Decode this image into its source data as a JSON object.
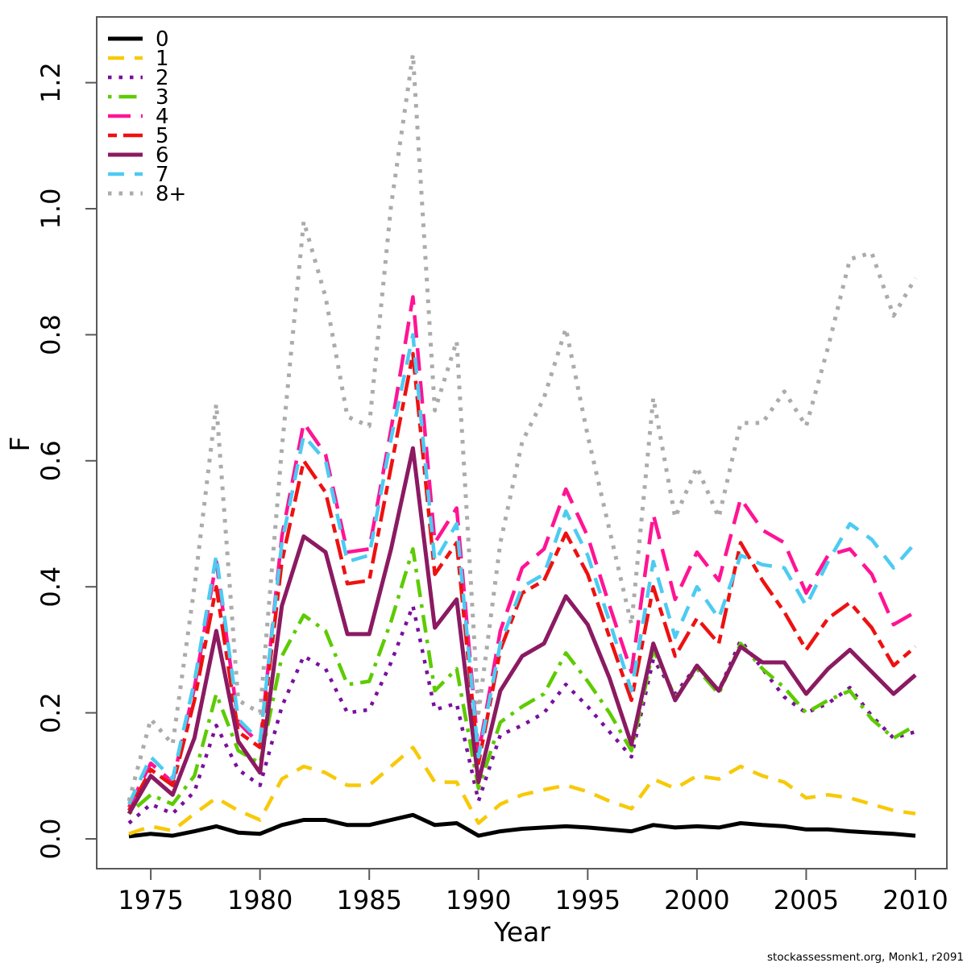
{
  "watermark": "stockassessment.org, Monk1, r2091",
  "colors": {
    "axis": "#595959",
    "text": "#000000",
    "background": "#ffffff"
  },
  "chart_data": {
    "type": "line",
    "title": "",
    "xlabel": "Year",
    "ylabel": "F",
    "grid": false,
    "legend_position": "top-left",
    "xlim": [
      1972.5,
      2011.4
    ],
    "ylim": [
      -0.05,
      1.31
    ],
    "x_ticks": [
      1975,
      1980,
      1985,
      1990,
      1995,
      2000,
      2005,
      2010
    ],
    "y_ticks": [
      "0.0",
      "0.2",
      "0.4",
      "0.6",
      "0.8",
      "1.0",
      "1.2"
    ],
    "x": [
      1974,
      1975,
      1976,
      1977,
      1978,
      1979,
      1980,
      1981,
      1982,
      1983,
      1984,
      1985,
      1986,
      1987,
      1988,
      1989,
      1990,
      1991,
      1992,
      1993,
      1994,
      1995,
      1996,
      1997,
      1998,
      1999,
      2000,
      2001,
      2002,
      2003,
      2004,
      2005,
      2006,
      2007,
      2008,
      2009,
      2010
    ],
    "series": [
      {
        "name": "0",
        "color": "#000000",
        "linetype": "solid",
        "width": 5,
        "values": [
          0.004,
          0.008,
          0.005,
          0.012,
          0.02,
          0.01,
          0.008,
          0.022,
          0.03,
          0.03,
          0.022,
          0.022,
          0.03,
          0.038,
          0.022,
          0.025,
          0.005,
          0.012,
          0.016,
          0.018,
          0.02,
          0.018,
          0.015,
          0.012,
          0.022,
          0.018,
          0.02,
          0.018,
          0.025,
          0.022,
          0.02,
          0.015,
          0.015,
          0.012,
          0.01,
          0.008,
          0.005
        ]
      },
      {
        "name": "1",
        "color": "#F7C908",
        "linetype": "dashed",
        "width": 4.5,
        "values": [
          0.008,
          0.02,
          0.013,
          0.04,
          0.065,
          0.045,
          0.03,
          0.095,
          0.115,
          0.105,
          0.085,
          0.085,
          0.115,
          0.145,
          0.09,
          0.09,
          0.025,
          0.055,
          0.07,
          0.078,
          0.085,
          0.075,
          0.06,
          0.048,
          0.095,
          0.08,
          0.1,
          0.095,
          0.115,
          0.1,
          0.09,
          0.065,
          0.07,
          0.065,
          0.055,
          0.045,
          0.04
        ]
      },
      {
        "name": "2",
        "color": "#7A0F9E",
        "linetype": "dotted",
        "width": 4.5,
        "values": [
          0.025,
          0.055,
          0.04,
          0.075,
          0.18,
          0.11,
          0.085,
          0.21,
          0.29,
          0.27,
          0.2,
          0.205,
          0.28,
          0.37,
          0.205,
          0.215,
          0.06,
          0.165,
          0.18,
          0.2,
          0.245,
          0.21,
          0.17,
          0.13,
          0.285,
          0.23,
          0.275,
          0.235,
          0.315,
          0.27,
          0.225,
          0.2,
          0.215,
          0.24,
          0.195,
          0.16,
          0.17
        ]
      },
      {
        "name": "3",
        "color": "#5DCB00",
        "linetype": "dotdash",
        "width": 4.5,
        "values": [
          0.04,
          0.07,
          0.055,
          0.1,
          0.23,
          0.14,
          0.12,
          0.29,
          0.355,
          0.33,
          0.245,
          0.25,
          0.345,
          0.46,
          0.235,
          0.27,
          0.08,
          0.185,
          0.21,
          0.23,
          0.295,
          0.25,
          0.2,
          0.14,
          0.3,
          0.225,
          0.27,
          0.23,
          0.31,
          0.27,
          0.24,
          0.2,
          0.22,
          0.235,
          0.19,
          0.16,
          0.18
        ]
      },
      {
        "name": "4",
        "color": "#FF1493",
        "linetype": "longdash",
        "width": 4.5,
        "values": [
          0.05,
          0.12,
          0.09,
          0.24,
          0.44,
          0.185,
          0.15,
          0.48,
          0.66,
          0.61,
          0.455,
          0.46,
          0.65,
          0.86,
          0.47,
          0.525,
          0.135,
          0.33,
          0.43,
          0.46,
          0.555,
          0.48,
          0.37,
          0.265,
          0.515,
          0.38,
          0.455,
          0.41,
          0.54,
          0.49,
          0.47,
          0.39,
          0.45,
          0.46,
          0.42,
          0.34,
          0.36
        ]
      },
      {
        "name": "5",
        "color": "#EE1111",
        "linetype": "twodash",
        "width": 4.5,
        "values": [
          0.045,
          0.11,
          0.085,
          0.22,
          0.4,
          0.17,
          0.145,
          0.44,
          0.6,
          0.55,
          0.405,
          0.41,
          0.59,
          0.77,
          0.42,
          0.47,
          0.12,
          0.3,
          0.39,
          0.41,
          0.485,
          0.42,
          0.32,
          0.22,
          0.4,
          0.29,
          0.35,
          0.31,
          0.47,
          0.41,
          0.36,
          0.3,
          0.35,
          0.375,
          0.335,
          0.275,
          0.305
        ]
      },
      {
        "name": "6",
        "color": "#8B1A62",
        "linetype": "solid",
        "width": 5,
        "values": [
          0.04,
          0.1,
          0.07,
          0.16,
          0.33,
          0.155,
          0.105,
          0.37,
          0.48,
          0.455,
          0.325,
          0.325,
          0.46,
          0.62,
          0.335,
          0.38,
          0.09,
          0.235,
          0.29,
          0.31,
          0.385,
          0.34,
          0.255,
          0.15,
          0.31,
          0.22,
          0.275,
          0.235,
          0.305,
          0.28,
          0.28,
          0.23,
          0.27,
          0.3,
          0.265,
          0.23,
          0.26
        ]
      },
      {
        "name": "7",
        "color": "#4DCBF2",
        "linetype": "dashed",
        "width": 4.5,
        "values": [
          0.055,
          0.13,
          0.095,
          0.25,
          0.45,
          0.19,
          0.155,
          0.47,
          0.64,
          0.6,
          0.44,
          0.45,
          0.635,
          0.8,
          0.44,
          0.5,
          0.13,
          0.31,
          0.4,
          0.42,
          0.52,
          0.45,
          0.345,
          0.235,
          0.44,
          0.32,
          0.4,
          0.35,
          0.45,
          0.435,
          0.43,
          0.37,
          0.44,
          0.5,
          0.475,
          0.43,
          0.47
        ]
      },
      {
        "name": "8+",
        "color": "#ABABAB",
        "linetype": "dotted",
        "width": 5,
        "values": [
          0.06,
          0.19,
          0.15,
          0.4,
          0.69,
          0.22,
          0.2,
          0.62,
          0.98,
          0.86,
          0.67,
          0.655,
          1.005,
          1.245,
          0.68,
          0.79,
          0.2,
          0.47,
          0.63,
          0.7,
          0.81,
          0.64,
          0.49,
          0.34,
          0.7,
          0.51,
          0.59,
          0.51,
          0.66,
          0.66,
          0.71,
          0.655,
          0.78,
          0.92,
          0.93,
          0.83,
          0.89
        ]
      }
    ]
  }
}
